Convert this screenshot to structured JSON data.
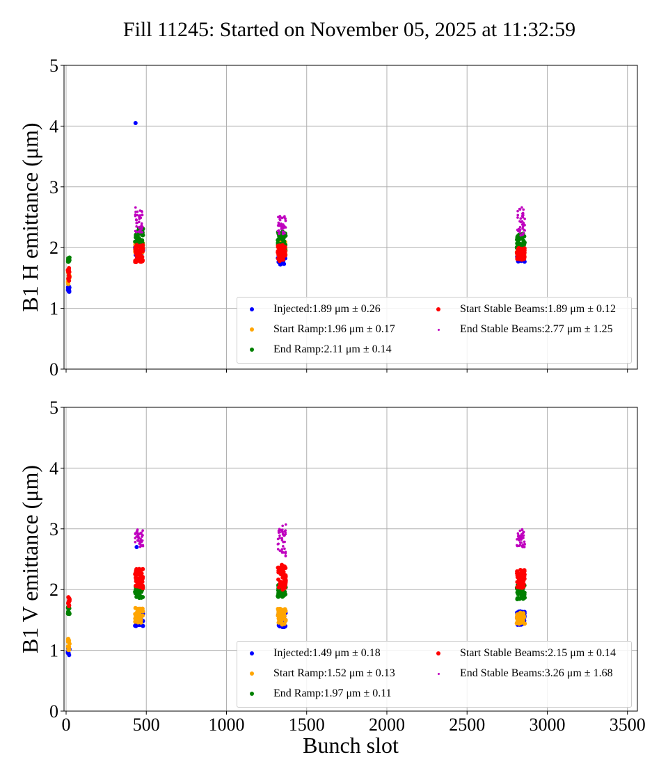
{
  "chart_data": [
    {
      "type": "scatter",
      "title": "Fill 11245: Started on November 05, 2025 at 11:32:59",
      "xlabel": "",
      "ylabel": "B1 H emittance (μm)",
      "xlim": [
        -13,
        3562
      ],
      "ylim": [
        0,
        5
      ],
      "xticks": [
        "0",
        "500",
        "1000",
        "1500",
        "2000",
        "2500",
        "3000",
        "3500"
      ],
      "yticks": [
        "0",
        "1",
        "2",
        "3",
        "4",
        "5"
      ],
      "grid": true,
      "legend_placement": "lower-right",
      "series": [
        {
          "name": "Injected",
          "label": "Injected:1.89 μm ± 0.26",
          "color": "#0000ff",
          "size": "large",
          "clusters": [
            {
              "x": [
                10,
                22
              ],
              "y": [
                1.25,
                1.36
              ],
              "n": 12
            },
            {
              "x": [
                430,
                480
              ],
              "y": [
                1.8,
                2.12
              ],
              "n": 45
            },
            {
              "x": [
                1320,
                1370
              ],
              "y": [
                1.72,
                2.05
              ],
              "n": 45
            },
            {
              "x": [
                2810,
                2860
              ],
              "y": [
                1.76,
                2.0
              ],
              "n": 45
            }
          ],
          "points": [
            [
              433,
              4.05
            ]
          ]
        },
        {
          "name": "Start Ramp",
          "label": "Start Ramp:1.96 μm ± 0.17",
          "color": "#ffa500",
          "size": "large",
          "clusters": [
            {
              "x": [
                10,
                22
              ],
              "y": [
                1.4,
                1.6
              ],
              "n": 12
            },
            {
              "x": [
                430,
                480
              ],
              "y": [
                1.9,
                2.12
              ],
              "n": 40
            },
            {
              "x": [
                1320,
                1370
              ],
              "y": [
                1.85,
                2.1
              ],
              "n": 40
            },
            {
              "x": [
                2810,
                2860
              ],
              "y": [
                1.85,
                2.05
              ],
              "n": 40
            }
          ],
          "points": []
        },
        {
          "name": "End Ramp",
          "label": "End Ramp:2.11 μm ± 0.14",
          "color": "#008000",
          "size": "large",
          "clusters": [
            {
              "x": [
                10,
                22
              ],
              "y": [
                1.75,
                1.87
              ],
              "n": 10
            },
            {
              "x": [
                430,
                480
              ],
              "y": [
                2.0,
                2.32
              ],
              "n": 45
            },
            {
              "x": [
                1320,
                1370
              ],
              "y": [
                1.98,
                2.28
              ],
              "n": 45
            },
            {
              "x": [
                2810,
                2860
              ],
              "y": [
                1.98,
                2.24
              ],
              "n": 45
            }
          ],
          "points": []
        },
        {
          "name": "Start Stable Beams",
          "label": "Start Stable Beams:1.89 μm ± 0.12",
          "color": "#ff0000",
          "size": "large",
          "clusters": [
            {
              "x": [
                10,
                22
              ],
              "y": [
                1.45,
                1.68
              ],
              "n": 12
            },
            {
              "x": [
                430,
                480
              ],
              "y": [
                1.75,
                2.05
              ],
              "n": 50
            },
            {
              "x": [
                1320,
                1370
              ],
              "y": [
                1.78,
                2.05
              ],
              "n": 50
            },
            {
              "x": [
                2810,
                2860
              ],
              "y": [
                1.8,
                2.0
              ],
              "n": 50
            }
          ],
          "points": []
        },
        {
          "name": "End Stable Beams",
          "label": "End Stable Beams:2.77 μm ± 1.25",
          "color": "#bf00bf",
          "size": "small",
          "clusters": [
            {
              "x": [
                430,
                480
              ],
              "y": [
                2.25,
                2.62
              ],
              "n": 40
            },
            {
              "x": [
                1320,
                1370
              ],
              "y": [
                2.22,
                2.52
              ],
              "n": 40
            },
            {
              "x": [
                2810,
                2860
              ],
              "y": [
                2.2,
                2.68
              ],
              "n": 40
            }
          ],
          "points": [
            [
              433,
              2.66
            ]
          ]
        }
      ]
    },
    {
      "type": "scatter",
      "xlabel": "Bunch slot",
      "ylabel": "B1 V emittance (μm)",
      "xlim": [
        -13,
        3562
      ],
      "ylim": [
        0,
        5
      ],
      "xticks": [
        "0",
        "500",
        "1000",
        "1500",
        "2000",
        "2500",
        "3000",
        "3500"
      ],
      "yticks": [
        "0",
        "1",
        "2",
        "3",
        "4",
        "5"
      ],
      "grid": true,
      "legend_placement": "lower-right",
      "series": [
        {
          "name": "Injected",
          "label": "Injected:1.49 μm ± 0.18",
          "color": "#0000ff",
          "size": "large",
          "clusters": [
            {
              "x": [
                10,
                22
              ],
              "y": [
                0.92,
                1.05
              ],
              "n": 12
            },
            {
              "x": [
                430,
                480
              ],
              "y": [
                1.4,
                1.65
              ],
              "n": 45
            },
            {
              "x": [
                1320,
                1370
              ],
              "y": [
                1.38,
                1.65
              ],
              "n": 45
            },
            {
              "x": [
                2810,
                2860
              ],
              "y": [
                1.42,
                1.65
              ],
              "n": 45
            }
          ],
          "points": [
            [
              440,
              2.7
            ]
          ]
        },
        {
          "name": "Start Ramp",
          "label": "Start Ramp:1.52 μm ± 0.13",
          "color": "#ffa500",
          "size": "large",
          "clusters": [
            {
              "x": [
                10,
                22
              ],
              "y": [
                1.0,
                1.2
              ],
              "n": 12
            },
            {
              "x": [
                430,
                480
              ],
              "y": [
                1.45,
                1.7
              ],
              "n": 45
            },
            {
              "x": [
                1320,
                1370
              ],
              "y": [
                1.42,
                1.72
              ],
              "n": 45
            },
            {
              "x": [
                2810,
                2860
              ],
              "y": [
                1.42,
                1.62
              ],
              "n": 45
            }
          ],
          "points": []
        },
        {
          "name": "End Ramp",
          "label": "End Ramp:1.97 μm ± 0.11",
          "color": "#008000",
          "size": "large",
          "clusters": [
            {
              "x": [
                10,
                22
              ],
              "y": [
                1.58,
                1.8
              ],
              "n": 10
            },
            {
              "x": [
                430,
                480
              ],
              "y": [
                1.86,
                2.08
              ],
              "n": 45
            },
            {
              "x": [
                1320,
                1370
              ],
              "y": [
                1.88,
                2.08
              ],
              "n": 45
            },
            {
              "x": [
                2810,
                2860
              ],
              "y": [
                1.84,
                2.08
              ],
              "n": 45
            }
          ],
          "points": []
        },
        {
          "name": "Start Stable Beams",
          "label": "Start Stable Beams:2.15 μm ± 0.14",
          "color": "#ff0000",
          "size": "large",
          "clusters": [
            {
              "x": [
                10,
                22
              ],
              "y": [
                1.72,
                1.88
              ],
              "n": 12
            },
            {
              "x": [
                430,
                480
              ],
              "y": [
                2.02,
                2.34
              ],
              "n": 50
            },
            {
              "x": [
                1320,
                1370
              ],
              "y": [
                2.0,
                2.42
              ],
              "n": 50
            },
            {
              "x": [
                2810,
                2860
              ],
              "y": [
                2.0,
                2.33
              ],
              "n": 50
            }
          ],
          "points": []
        },
        {
          "name": "End Stable Beams",
          "label": "End Stable Beams:3.26 μm ± 1.68",
          "color": "#bf00bf",
          "size": "small",
          "clusters": [
            {
              "x": [
                430,
                480
              ],
              "y": [
                2.7,
                3.0
              ],
              "n": 40
            },
            {
              "x": [
                1320,
                1370
              ],
              "y": [
                2.55,
                3.0
              ],
              "n": 40
            },
            {
              "x": [
                2810,
                2860
              ],
              "y": [
                2.7,
                3.0
              ],
              "n": 40
            }
          ],
          "points": [
            [
              1350,
              3.05
            ],
            [
              1370,
              3.07
            ]
          ]
        }
      ]
    }
  ]
}
